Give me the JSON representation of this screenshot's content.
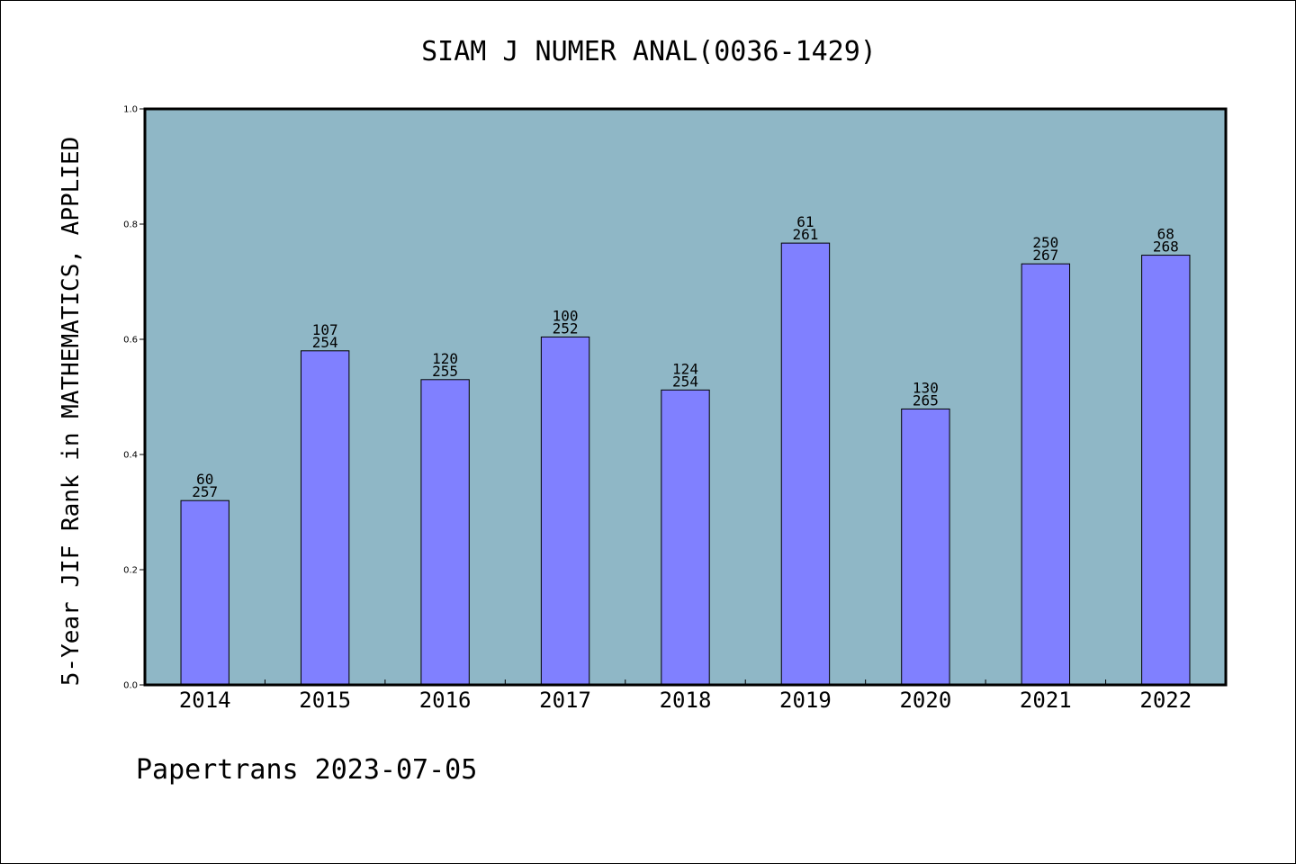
{
  "chart_data": {
    "type": "bar",
    "title": "SIAM J NUMER ANAL(0036-1429)",
    "ylabel": "5-Year JIF Rank in MATHEMATICS, APPLIED",
    "xlabel": "",
    "categories": [
      "2014",
      "2015",
      "2016",
      "2017",
      "2018",
      "2019",
      "2020",
      "2021",
      "2022"
    ],
    "values": [
      0.32,
      0.58,
      0.53,
      0.604,
      0.512,
      0.767,
      0.479,
      0.731,
      0.746
    ],
    "ranks": [
      "60",
      "107",
      "120",
      "100",
      "124",
      "61",
      "130",
      "250",
      "68"
    ],
    "totals": [
      "257",
      "254",
      "255",
      "252",
      "254",
      "261",
      "265",
      "267",
      "268"
    ],
    "ylim": [
      0,
      1.0
    ],
    "yticks": [
      "0.0",
      "0.2",
      "0.4",
      "0.6",
      "0.8",
      "1.0"
    ],
    "grid": false,
    "colors": {
      "plot_background": "#8fb7c6",
      "bar_fill": "#8080ff",
      "bar_stroke": "#000000"
    }
  },
  "footer": "Papertrans 2023-07-05"
}
